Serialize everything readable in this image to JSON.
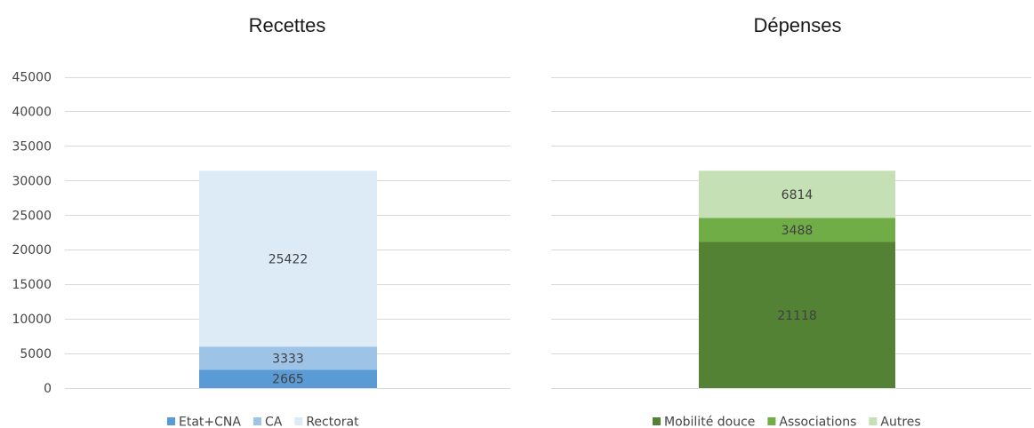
{
  "chart_data": [
    {
      "type": "bar",
      "stacked": true,
      "title": "Recettes",
      "ylim": [
        0,
        45000
      ],
      "y_ticks": [
        "0",
        "5000",
        "10000",
        "15000",
        "20000",
        "25000",
        "30000",
        "35000",
        "40000",
        "45000"
      ],
      "grid": true,
      "legend_position": "bottom",
      "series": [
        {
          "name": "Etat+CNA",
          "values": [
            2665
          ],
          "label": "2665",
          "color": "#5b9bd5"
        },
        {
          "name": "CA",
          "values": [
            3333
          ],
          "label": "3333",
          "color": "#9dc3e6"
        },
        {
          "name": "Rectorat",
          "values": [
            25422
          ],
          "label": "25422",
          "color": "#ddebf7"
        }
      ]
    },
    {
      "type": "bar",
      "stacked": true,
      "title": "Dépenses",
      "ylim": [
        0,
        45000
      ],
      "grid": true,
      "legend_position": "bottom",
      "series": [
        {
          "name": "Mobilité douce",
          "values": [
            21118
          ],
          "label": "21118",
          "color": "#548235"
        },
        {
          "name": "Associations",
          "values": [
            3488
          ],
          "label": "3488",
          "color": "#70ad47"
        },
        {
          "name": "Autres",
          "values": [
            6814
          ],
          "label": "6814",
          "color": "#c5e0b4"
        }
      ]
    }
  ]
}
